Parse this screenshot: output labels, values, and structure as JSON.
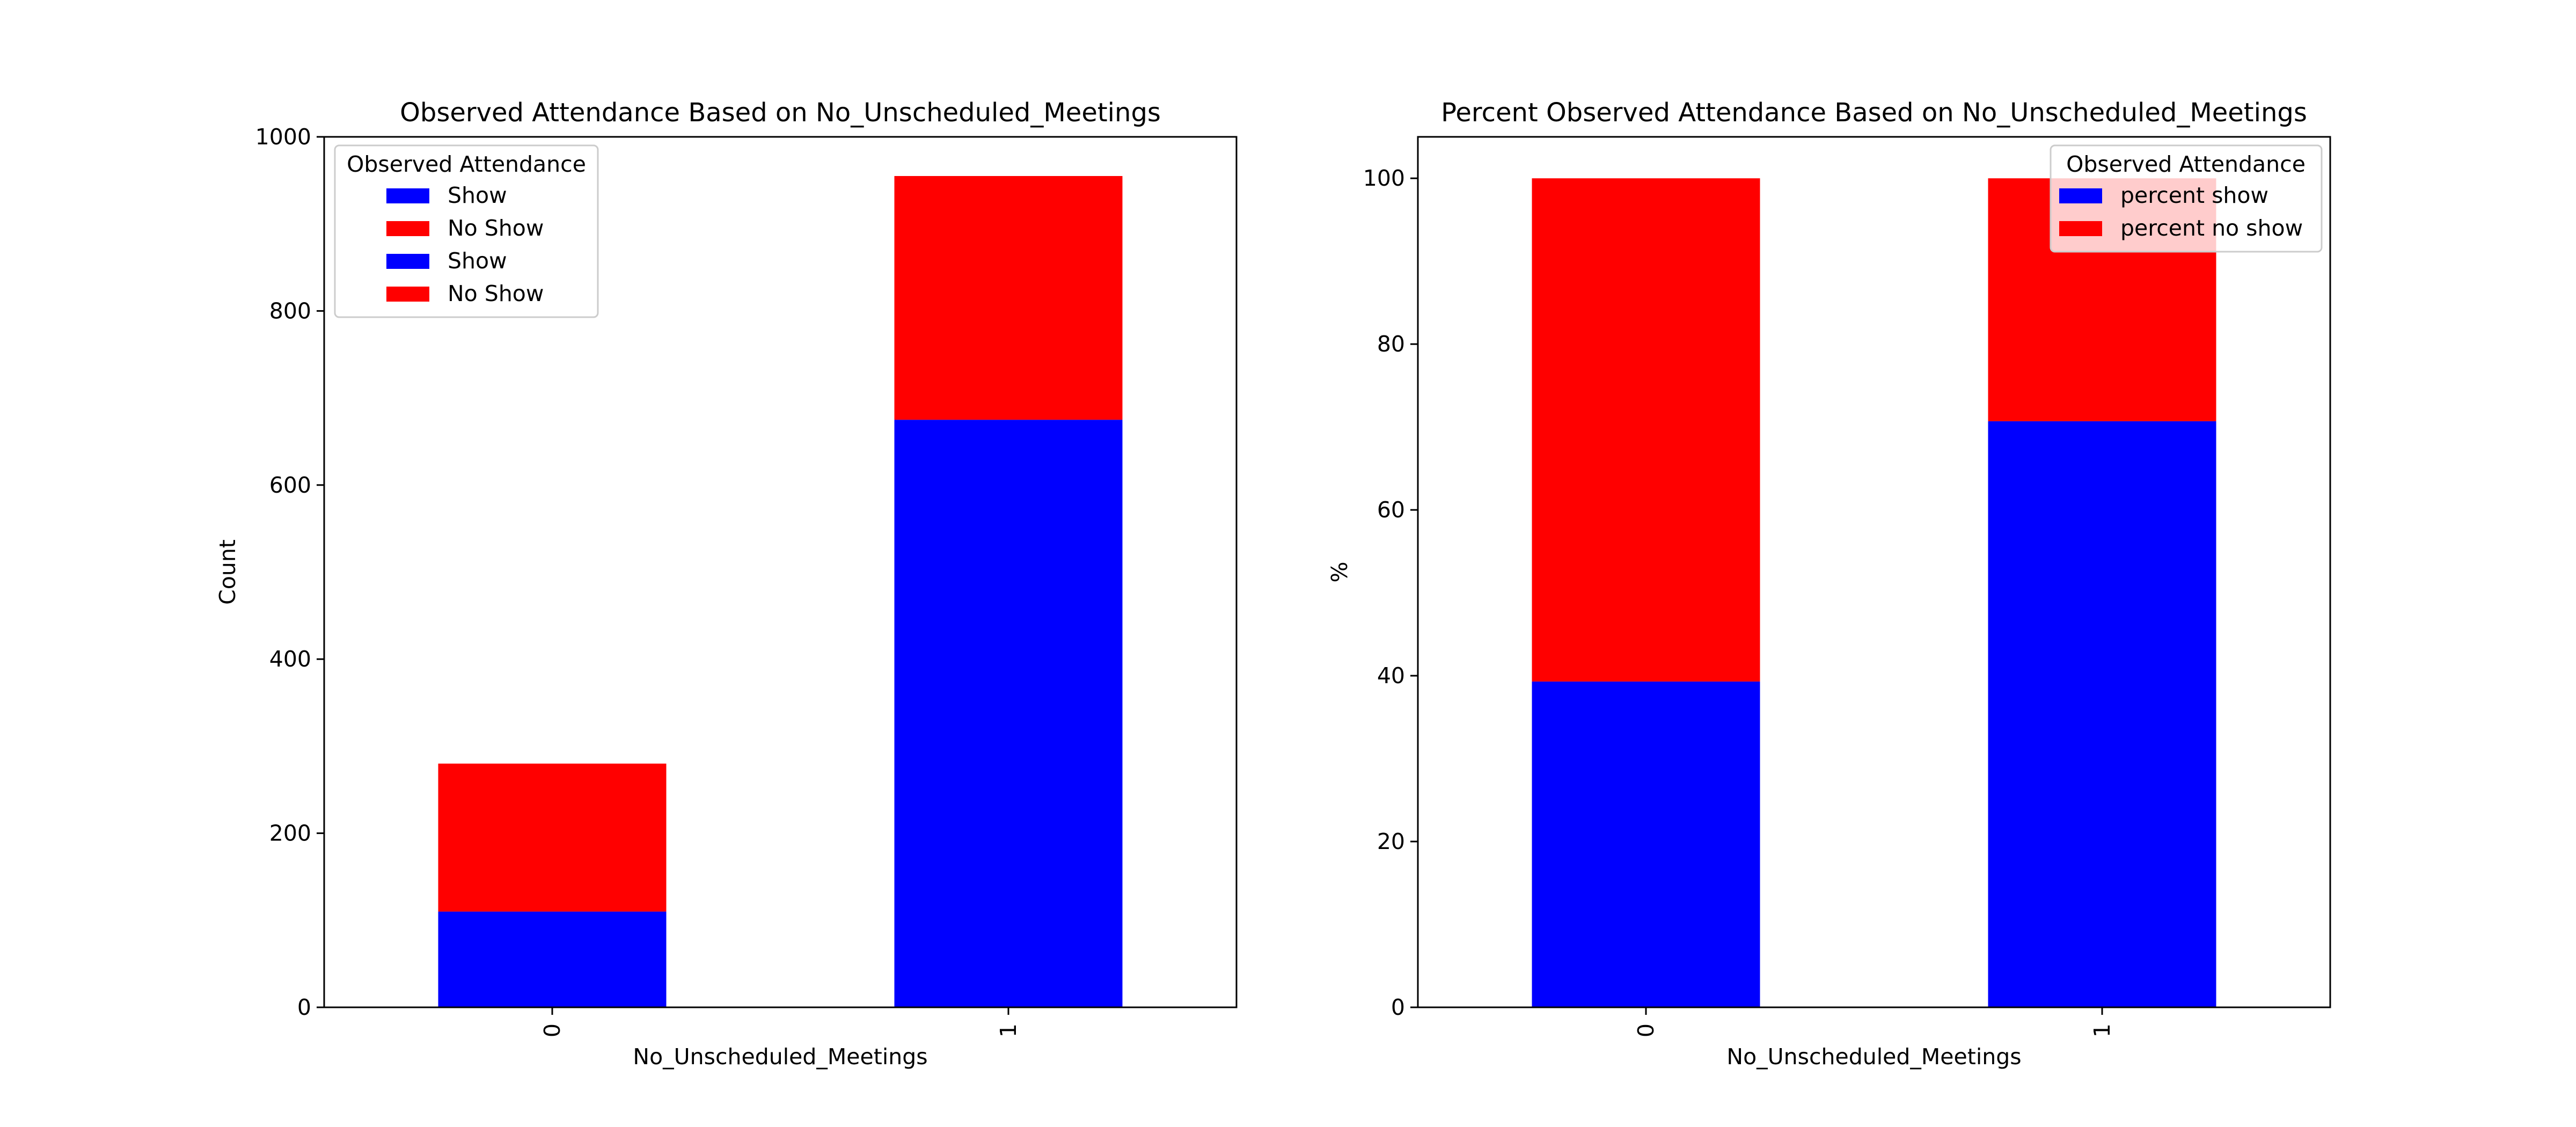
{
  "chart_data": [
    {
      "type": "bar",
      "stacked": true,
      "title": "Observed Attendance Based on No_Unscheduled_Meetings",
      "xlabel": "No_Unscheduled_Meetings",
      "ylabel": "Count",
      "categories": [
        "0",
        "1"
      ],
      "ylim": [
        0,
        1000
      ],
      "yticks": [
        "0",
        "200",
        "400",
        "600",
        "800",
        "1000"
      ],
      "series": [
        {
          "name": "Show",
          "color": "#0000ff",
          "values": [
            110,
            675
          ]
        },
        {
          "name": "No Show",
          "color": "#ff0000",
          "values": [
            170,
            280
          ]
        }
      ],
      "legend": {
        "title": "Observed Attendance",
        "placement": "upper-left",
        "entries": [
          {
            "label": "Show",
            "color": "#0000ff"
          },
          {
            "label": "No Show",
            "color": "#ff0000"
          },
          {
            "label": "Show",
            "color": "#0000ff"
          },
          {
            "label": "No Show",
            "color": "#ff0000"
          }
        ]
      },
      "grid": false
    },
    {
      "type": "bar",
      "stacked": true,
      "title": "Percent Observed Attendance Based on No_Unscheduled_Meetings",
      "xlabel": "No_Unscheduled_Meetings",
      "ylabel": "%",
      "categories": [
        "0",
        "1"
      ],
      "ylim": [
        0,
        105
      ],
      "yticks": [
        "0",
        "20",
        "40",
        "60",
        "80",
        "100"
      ],
      "series": [
        {
          "name": "percent show",
          "color": "#0000ff",
          "values": [
            39.3,
            70.7
          ]
        },
        {
          "name": "percent no show",
          "color": "#ff0000",
          "values": [
            60.7,
            29.3
          ]
        }
      ],
      "legend": {
        "title": "Observed Attendance",
        "placement": "upper-right",
        "entries": [
          {
            "label": "percent show",
            "color": "#0000ff"
          },
          {
            "label": "percent no show",
            "color": "#ff0000"
          }
        ]
      },
      "grid": false
    }
  ]
}
